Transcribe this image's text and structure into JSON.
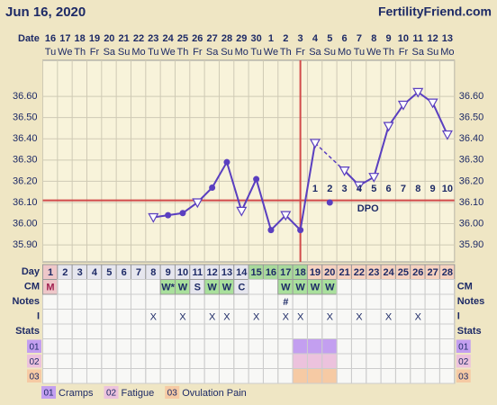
{
  "header": {
    "date": "Jun 16, 2020",
    "site": "FertilityFriend.com"
  },
  "chart_data": {
    "type": "line",
    "x_label": "Date",
    "dates": [
      "16",
      "17",
      "18",
      "19",
      "20",
      "21",
      "22",
      "23",
      "24",
      "25",
      "26",
      "27",
      "28",
      "29",
      "30",
      "1",
      "2",
      "3",
      "4",
      "5",
      "6",
      "7",
      "8",
      "9",
      "10",
      "11",
      "12",
      "13"
    ],
    "weekdays": [
      "Tu",
      "We",
      "Th",
      "Fr",
      "Sa",
      "Su",
      "Mo",
      "Tu",
      "We",
      "Th",
      "Fr",
      "Sa",
      "Su",
      "Mo",
      "Tu",
      "We",
      "Th",
      "Fr",
      "Sa",
      "Su",
      "Mo",
      "Tu",
      "We",
      "Th",
      "Fr",
      "Sa",
      "Su",
      "Mo"
    ],
    "values": [
      null,
      null,
      null,
      null,
      null,
      null,
      null,
      36.03,
      36.04,
      36.05,
      36.1,
      36.17,
      36.29,
      36.06,
      36.21,
      35.97,
      36.04,
      35.97,
      36.38,
      null,
      36.25,
      36.18,
      36.22,
      36.46,
      36.56,
      36.62,
      36.57,
      36.42
    ],
    "markers": [
      null,
      null,
      null,
      null,
      null,
      null,
      null,
      "triangle",
      "dot",
      "dot",
      "triangle",
      "dot",
      "dot",
      "triangle",
      "dot",
      "dot",
      "triangle",
      "dot",
      "triangle",
      null,
      "triangle",
      "triangle",
      "triangle",
      "triangle",
      "triangle",
      "triangle",
      "triangle",
      "triangle"
    ],
    "outlier_values": [
      null,
      null,
      null,
      null,
      null,
      null,
      null,
      null,
      null,
      null,
      null,
      null,
      null,
      null,
      null,
      null,
      null,
      null,
      null,
      36.1,
      null,
      null,
      null,
      null,
      null,
      null,
      null,
      null
    ],
    "color": "#5a3fc0",
    "coverline": 36.11,
    "coverline_color": "#d24a4a",
    "ovulation_day": 18,
    "dpo_label": "DPO",
    "dpo": [
      null,
      null,
      null,
      null,
      null,
      null,
      null,
      null,
      null,
      null,
      null,
      null,
      null,
      null,
      null,
      null,
      null,
      null,
      1,
      2,
      3,
      4,
      5,
      6,
      7,
      8,
      9,
      10
    ],
    "ylim": [
      35.82,
      36.77
    ],
    "yticks": [
      {
        "value": 35.9,
        "label": "35.90"
      },
      {
        "value": 36.0,
        "label": "36.00"
      },
      {
        "value": 36.1,
        "label": "36.10"
      },
      {
        "value": 36.2,
        "label": "36.20"
      },
      {
        "value": 36.3,
        "label": "36.30"
      },
      {
        "value": 36.4,
        "label": "36.40"
      },
      {
        "value": 36.5,
        "label": "36.50"
      },
      {
        "value": 36.6,
        "label": "36.60"
      }
    ],
    "grid": true
  },
  "table": {
    "labels": {
      "day": "Day",
      "cm": "CM",
      "notes": "Notes",
      "intercourse": "I",
      "stats": "Stats"
    },
    "days": [
      1,
      2,
      3,
      4,
      5,
      6,
      7,
      8,
      9,
      10,
      11,
      12,
      13,
      14,
      15,
      16,
      17,
      18,
      19,
      20,
      21,
      22,
      23,
      24,
      25,
      26,
      27,
      28
    ],
    "day_colors": [
      "#eec7c9",
      "#e6e6ee",
      "#e6e6ee",
      "#e6e6ee",
      "#e6e6ee",
      "#e6e6ee",
      "#e6e6ee",
      "#e6e6ee",
      "#e6e6ee",
      "#e6e6ee",
      "#e6e6ee",
      "#e6e6ee",
      "#e6e6ee",
      "#e6e6ee",
      "#a9d99c",
      "#a9d99c",
      "#a9d99c",
      "#a9d99c",
      "#f6d2c0",
      "#f6d2c0",
      "#f6d2c0",
      "#f6d2c0",
      "#f6d2c0",
      "#f6d2c0",
      "#f6d2c0",
      "#f6d2c0",
      "#f6d2c0",
      "#f6d2c0"
    ],
    "cm": [
      "M",
      null,
      null,
      null,
      null,
      null,
      null,
      null,
      "W*",
      "W",
      "S",
      "W",
      "W",
      "C",
      null,
      null,
      "W",
      "W",
      "W",
      "W",
      null,
      null,
      null,
      null,
      null,
      null,
      null,
      null
    ],
    "cm_colors": [
      "#eec7c9",
      null,
      null,
      null,
      null,
      null,
      null,
      null,
      "#a9e09c",
      "#a9e09c",
      "#e6e6ee",
      "#a9e09c",
      "#a9e09c",
      "#e6e6ee",
      null,
      null,
      "#a9e09c",
      "#a9e09c",
      "#a9e09c",
      "#a9e09c",
      null,
      null,
      null,
      null,
      null,
      null,
      null,
      null
    ],
    "notes": [
      null,
      null,
      null,
      null,
      null,
      null,
      null,
      null,
      null,
      null,
      null,
      null,
      null,
      null,
      null,
      null,
      "#",
      null,
      null,
      null,
      null,
      null,
      null,
      null,
      null,
      null,
      null,
      null
    ],
    "intercourse": [
      null,
      null,
      null,
      null,
      null,
      null,
      null,
      "X",
      null,
      "X",
      null,
      "X",
      "X",
      null,
      "X",
      null,
      "X",
      "X",
      null,
      "X",
      null,
      "X",
      null,
      "X",
      null,
      "X",
      null,
      null
    ],
    "stats": [
      {
        "code": "01",
        "name": "Cramps",
        "color": "#c39ff0",
        "days": [
          18,
          19,
          20
        ]
      },
      {
        "code": "02",
        "name": "Fatigue",
        "color": "#ecc2dd",
        "days": [
          18,
          19,
          20
        ]
      },
      {
        "code": "03",
        "name": "Ovulation Pain",
        "color": "#f6caa4",
        "days": [
          18,
          19,
          20
        ]
      }
    ]
  }
}
